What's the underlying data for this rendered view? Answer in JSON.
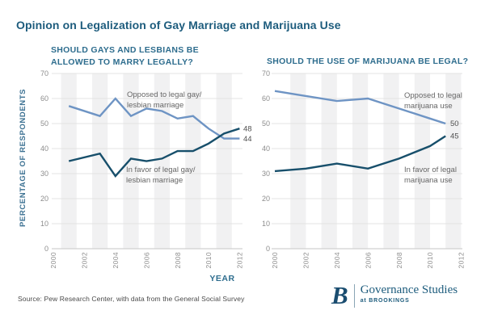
{
  "page_title": "Opinion on Legalization of Gay Marriage and Marijuana Use",
  "x_axis_label": "YEAR",
  "y_axis_label": "PERCENTAGE OF RESPONDENTS",
  "source_note": "Source: Pew Research Center, with data from the General Social Survey",
  "logo": {
    "initial": "B",
    "name": "Governance Studies",
    "tagline": "at BROOKINGS"
  },
  "colors": {
    "title": "#1d5c7d",
    "subtitle": "#2e6d8e",
    "oppose_line": "#6e94c4",
    "favor_line": "#174f6b",
    "annotation": "#666666",
    "tick_label": "#8c8c8c",
    "end_label": "#4f4f4f",
    "stripe": "#f1f1f2",
    "grid": "#e3e3e3",
    "axis_line": "#c6c6c6"
  },
  "chart_data": [
    {
      "type": "line",
      "title_lines": [
        "SHOULD GAYS AND LESBIANS BE",
        "ALLOWED TO MARRY LEGALLY?"
      ],
      "xlabel": "YEAR",
      "ylabel": "PERCENTAGE OF RESPONDENTS",
      "ylim": [
        0,
        70
      ],
      "yticks": [
        0,
        10,
        20,
        30,
        40,
        50,
        60,
        70
      ],
      "xticks": [
        2000,
        2002,
        2004,
        2006,
        2008,
        2010,
        2012
      ],
      "grid": true,
      "x": [
        2001,
        2003,
        2004,
        2005,
        2006,
        2007,
        2008,
        2009,
        2010,
        2011,
        2012
      ],
      "series": [
        {
          "name": "opposed-to-legal-gay-lesbian-marriage",
          "role": "oppose",
          "label_lines": [
            "Opposed to legal gay/",
            "lesbian marriage"
          ],
          "values": [
            57,
            53,
            60,
            53,
            56,
            55,
            52,
            53,
            48,
            44,
            44
          ],
          "end_label": "44"
        },
        {
          "name": "in-favor-of-legal-gay-lesbian-marriage",
          "role": "favor",
          "label_lines": [
            "In favor of legal gay/",
            "lesbian marriage"
          ],
          "values": [
            35,
            38,
            29,
            36,
            35,
            36,
            39,
            39,
            42,
            46,
            48
          ],
          "end_label": "48"
        }
      ]
    },
    {
      "type": "line",
      "title_lines": [
        "SHOULD THE USE OF MARIJUANA BE LEGAL?"
      ],
      "xlabel": "YEAR",
      "ylabel": "PERCENTAGE OF RESPONDENTS",
      "ylim": [
        0,
        70
      ],
      "yticks": [
        0,
        10,
        20,
        30,
        40,
        50,
        60,
        70
      ],
      "xticks": [
        2000,
        2002,
        2004,
        2006,
        2008,
        2010,
        2012
      ],
      "grid": true,
      "x": [
        2000,
        2002,
        2004,
        2006,
        2008,
        2010,
        2011
      ],
      "series": [
        {
          "name": "opposed-to-legal-marijuana-use",
          "role": "oppose",
          "label_lines": [
            "Opposed to legal",
            "marijuana use"
          ],
          "values": [
            63,
            61,
            59,
            60,
            56,
            52,
            50
          ],
          "end_label": "50"
        },
        {
          "name": "in-favor-of-legal-marijuana-use",
          "role": "favor",
          "label_lines": [
            "In favor of legal",
            "marijuana use"
          ],
          "values": [
            31,
            32,
            34,
            32,
            36,
            41,
            45
          ],
          "end_label": "45"
        }
      ]
    }
  ]
}
